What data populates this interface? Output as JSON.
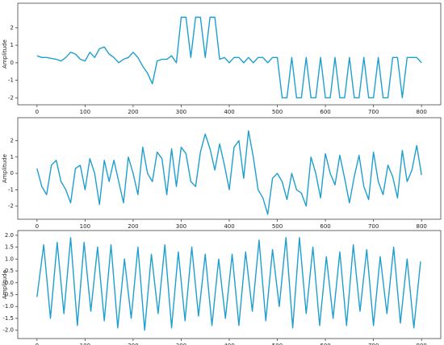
{
  "chart_data": [
    {
      "type": "line",
      "ylabel": "Amplitude",
      "x": [
        0,
        10,
        20,
        30,
        40,
        50,
        60,
        70,
        80,
        90,
        100,
        110,
        120,
        130,
        140,
        150,
        160,
        170,
        180,
        190,
        200,
        210,
        220,
        230,
        240,
        250,
        260,
        270,
        280,
        290,
        300,
        310,
        320,
        330,
        340,
        350,
        360,
        370,
        380,
        390,
        400,
        410,
        420,
        430,
        440,
        450,
        460,
        470,
        480,
        490,
        500,
        510,
        520,
        530,
        540,
        550,
        560,
        570,
        580,
        590,
        600,
        610,
        620,
        630,
        640,
        650,
        660,
        670,
        680,
        690,
        700,
        710,
        720,
        730,
        740,
        750,
        760,
        770,
        780,
        790,
        800
      ],
      "series": [
        {
          "color": "#1f9fd0",
          "values": [
            0.4,
            0.3,
            0.3,
            0.25,
            0.2,
            0.1,
            0.3,
            0.6,
            0.5,
            0.2,
            0.1,
            0.6,
            0.3,
            0.8,
            0.9,
            0.5,
            0.3,
            0,
            0.2,
            0.3,
            0.6,
            0.3,
            -0.2,
            -0.6,
            -1.2,
            0.1,
            0.2,
            0.2,
            0.4,
            0,
            2.6,
            2.6,
            0.3,
            2.6,
            2.6,
            0.3,
            2.6,
            2.6,
            0.2,
            0.3,
            0,
            0.3,
            0.3,
            0,
            0.3,
            0,
            0.3,
            0.3,
            0,
            0.3,
            0.3,
            -2,
            -2,
            0.3,
            -2,
            -2,
            0.3,
            -2,
            -2,
            0.3,
            -2,
            -2,
            0.3,
            -2,
            -2,
            0.3,
            -2,
            -2,
            0.3,
            -2,
            -2,
            0.3,
            -2,
            -2,
            0.3,
            0.3,
            -2,
            0.3,
            0.3,
            0.3,
            0
          ]
        }
      ],
      "xlim": [
        -40,
        840
      ],
      "xticks": [
        0,
        100,
        200,
        300,
        400,
        500,
        600,
        700,
        800
      ],
      "ylim": [
        -2.4,
        3.4
      ],
      "yticks": [
        -2,
        -1,
        0,
        1,
        2
      ]
    },
    {
      "type": "line",
      "ylabel": "Amplitude",
      "x": [
        0,
        10,
        20,
        30,
        40,
        50,
        60,
        70,
        80,
        90,
        100,
        110,
        120,
        130,
        140,
        150,
        160,
        170,
        180,
        190,
        200,
        210,
        220,
        230,
        240,
        250,
        260,
        270,
        280,
        290,
        300,
        310,
        320,
        330,
        340,
        350,
        360,
        370,
        380,
        390,
        400,
        410,
        420,
        430,
        440,
        450,
        460,
        470,
        480,
        490,
        500,
        510,
        520,
        530,
        540,
        550,
        560,
        570,
        580,
        590,
        600,
        610,
        620,
        630,
        640,
        650,
        660,
        670,
        680,
        690,
        700,
        710,
        720,
        730,
        740,
        750,
        760,
        770,
        780,
        790,
        800
      ],
      "series": [
        {
          "color": "#1f9fd0",
          "values": [
            0.3,
            -0.8,
            -1.3,
            0.5,
            0.8,
            -0.5,
            -1,
            -1.8,
            0.3,
            0.5,
            -1,
            0.9,
            0,
            -1.9,
            0.8,
            -0.5,
            0.8,
            -0.5,
            -1.8,
            1,
            0,
            -1.3,
            1.6,
            0,
            -0.5,
            1.3,
            0.9,
            -1.3,
            1.5,
            -0.8,
            1.6,
            1.2,
            -0.5,
            -0.8,
            1.3,
            2.4,
            1.5,
            0.2,
            1.8,
            0.5,
            -1,
            1.6,
            2,
            -0.3,
            2.6,
            1,
            -1,
            -1.5,
            -2.5,
            -0.3,
            0,
            -0.5,
            -1.6,
            0,
            -1,
            -1.2,
            -2,
            1,
            0,
            -1.5,
            1.2,
            0,
            -0.7,
            1.1,
            -0.3,
            -1.8,
            -0.2,
            1.1,
            -0.8,
            -1.6,
            1.3,
            -0.5,
            -1.3,
            0.5,
            -0.2,
            -1.5,
            1.4,
            -0.5,
            0.2,
            1.7,
            -0.1
          ]
        }
      ],
      "xlim": [
        -40,
        840
      ],
      "xticks": [
        0,
        100,
        200,
        300,
        400,
        500,
        600,
        700,
        800
      ],
      "ylim": [
        -2.8,
        3.4
      ],
      "yticks": [
        -2,
        -1,
        0,
        1,
        2
      ]
    },
    {
      "type": "line",
      "ylabel": "Amplitude",
      "x": [
        0,
        14,
        28,
        42,
        56,
        70,
        84,
        98,
        112,
        126,
        140,
        154,
        168,
        182,
        196,
        210,
        224,
        238,
        252,
        266,
        280,
        294,
        308,
        322,
        336,
        350,
        364,
        378,
        392,
        406,
        420,
        434,
        448,
        462,
        476,
        490,
        504,
        518,
        532,
        546,
        560,
        574,
        588,
        602,
        616,
        630,
        644,
        658,
        672,
        686,
        700,
        714,
        728,
        742,
        756,
        770,
        784,
        798
      ],
      "series": [
        {
          "color": "#1f9fd0",
          "values": [
            -0.6,
            1.6,
            -1.5,
            1.7,
            -1.3,
            1.9,
            -1.8,
            1.7,
            -1.2,
            1.5,
            -1.6,
            1.6,
            -1.9,
            1.0,
            -1.5,
            1.5,
            -2.0,
            1.2,
            -1.3,
            1.6,
            -1.9,
            1.3,
            -1.6,
            1.5,
            -1.4,
            1.2,
            -1.8,
            1.0,
            -1.5,
            1.2,
            -1.8,
            1.3,
            -1.2,
            1.8,
            -1.6,
            1.4,
            -1.0,
            1.9,
            -1.9,
            1.9,
            -1.3,
            1.5,
            -1.8,
            1.1,
            -1.5,
            1.3,
            -1.8,
            1.6,
            -1.2,
            1.4,
            -1.8,
            1.1,
            -1.3,
            1.5,
            -1.7,
            1.0,
            -1.9,
            0.9
          ]
        }
      ],
      "xlim": [
        -40,
        840
      ],
      "xticks": [
        0,
        100,
        200,
        300,
        400,
        500,
        600,
        700,
        800
      ],
      "ylim": [
        -2.35,
        2.2
      ],
      "yticks": [
        {
          "value": -2,
          "label": "-2.0"
        },
        -1.5,
        {
          "value": -1,
          "label": "-1.0"
        },
        -0.5,
        {
          "value": 0,
          "label": "0.0"
        },
        0.5,
        {
          "value": 1,
          "label": "1.0"
        },
        1.5,
        {
          "value": 2,
          "label": "2.0"
        }
      ]
    }
  ]
}
